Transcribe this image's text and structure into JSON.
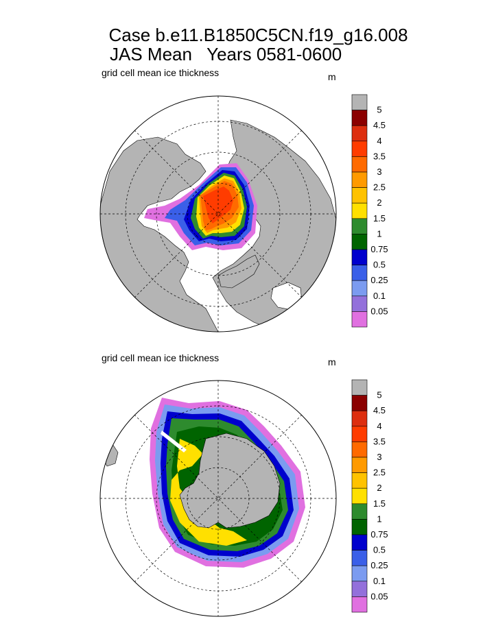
{
  "figure": {
    "title_line1": "Case b.e11.B1850C5CN.f19_g16.008",
    "title_line2": "JAS Mean   Years 0581-0600"
  },
  "colorbar": {
    "levels": [
      "5",
      "4.5",
      "4",
      "3.5",
      "3",
      "2.5",
      "2",
      "1.5",
      "1",
      "0.75",
      "0.5",
      "0.25",
      "0.1",
      "0.05"
    ],
    "colors": [
      "#b4b4b4",
      "#8b0000",
      "#dd2e0f",
      "#ff3c00",
      "#ff6a00",
      "#ff9a00",
      "#ffc200",
      "#ffe000",
      "#2e8b2e",
      "#006400",
      "#0000cd",
      "#3a5fe8",
      "#7b9bf0",
      "#9370db",
      "#e070e0"
    ]
  },
  "chart_data": [
    {
      "type": "heatmap",
      "name": "north_polar_stereographic",
      "title": "grid cell mean ice thickness",
      "units": "m",
      "hemisphere": "north",
      "contour_levels": [
        0.05,
        0.1,
        0.25,
        0.5,
        0.75,
        1,
        1.5,
        2,
        2.5,
        3,
        3.5,
        4,
        4.5,
        5
      ],
      "max_region_value": 3.5,
      "colorbar_placement": "right"
    },
    {
      "type": "heatmap",
      "name": "south_polar_stereographic",
      "title": "grid cell mean ice thickness",
      "units": "m",
      "hemisphere": "south",
      "contour_levels": [
        0.05,
        0.1,
        0.25,
        0.5,
        0.75,
        1,
        1.5,
        2,
        2.5,
        3,
        3.5,
        4,
        4.5,
        5
      ],
      "max_region_value": 2,
      "colorbar_placement": "right"
    }
  ]
}
